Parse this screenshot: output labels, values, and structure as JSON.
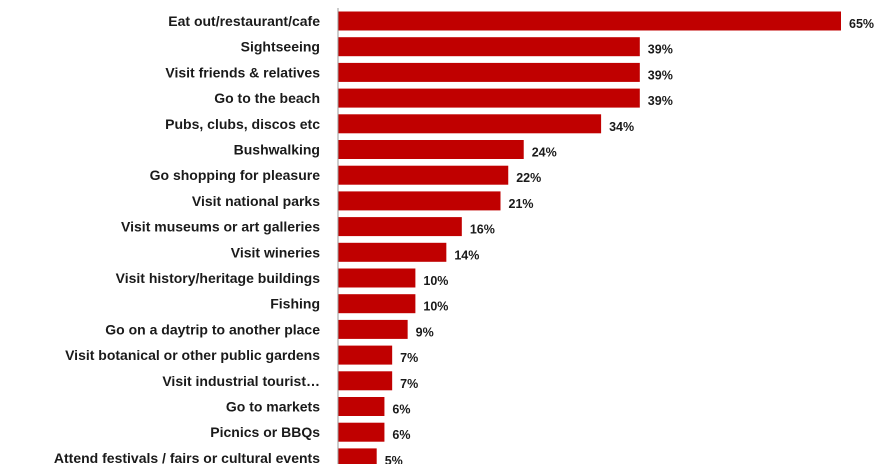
{
  "chart_data": {
    "type": "bar",
    "orientation": "horizontal",
    "title": "",
    "xlabel": "",
    "ylabel": "",
    "xlim": [
      0,
      65
    ],
    "grid": false,
    "legend": "none",
    "bar_color": "#c00000",
    "value_suffix": "%",
    "categories": [
      "Eat out/restaurant/cafe",
      "Sightseeing",
      "Visit friends & relatives",
      "Go to the beach",
      "Pubs, clubs, discos etc",
      "Bushwalking",
      "Go shopping for pleasure",
      "Visit national parks",
      "Visit museums or art galleries",
      "Visit wineries",
      "Visit history/heritage buildings",
      "Fishing",
      "Go on a daytrip to another place",
      "Visit botanical or other public gardens",
      "Visit industrial tourist…",
      "Go to markets",
      "Picnics or BBQs",
      "Attend festivals / fairs or cultural events"
    ],
    "values": [
      65,
      39,
      39,
      39,
      34,
      24,
      22,
      21,
      16,
      14,
      10,
      10,
      9,
      7,
      7,
      6,
      6,
      5
    ],
    "value_labels": [
      "65%",
      "39%",
      "39%",
      "39%",
      "34%",
      "24%",
      "22%",
      "21%",
      "16%",
      "14%",
      "10%",
      "10%",
      "9%",
      "7%",
      "7%",
      "6%",
      "6%",
      "5%"
    ]
  }
}
